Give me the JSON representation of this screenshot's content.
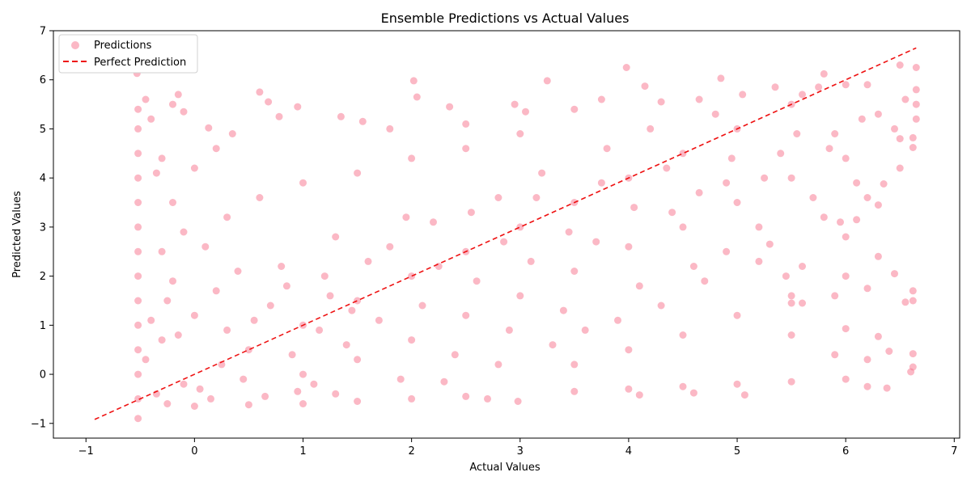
{
  "chart_data": {
    "type": "scatter",
    "title": "Ensemble Predictions vs Actual Values",
    "xlabel": "Actual Values",
    "ylabel": "Predicted Values",
    "xlim": [
      -1.3,
      7.05
    ],
    "ylim": [
      -1.3,
      7.0
    ],
    "xticks": [
      -1,
      0,
      1,
      2,
      3,
      4,
      5,
      6,
      7
    ],
    "yticks": [
      -1,
      0,
      1,
      2,
      3,
      4,
      5,
      6,
      7
    ],
    "tick_labels_x": [
      "−1",
      "0",
      "1",
      "2",
      "3",
      "4",
      "5",
      "6",
      "7"
    ],
    "tick_labels_y": [
      "−1",
      "0",
      "1",
      "2",
      "3",
      "4",
      "5",
      "6",
      "7"
    ],
    "grid": false,
    "legend_position": "top-left",
    "series": [
      {
        "name": "Predictions",
        "kind": "scatter",
        "color": "#f7728b",
        "alpha": 0.5,
        "points": [
          [
            -0.52,
            -0.9
          ],
          [
            -0.52,
            -0.5
          ],
          [
            -0.52,
            0.0
          ],
          [
            -0.52,
            0.5
          ],
          [
            -0.52,
            1.0
          ],
          [
            -0.52,
            1.5
          ],
          [
            -0.52,
            2.0
          ],
          [
            -0.52,
            2.5
          ],
          [
            -0.52,
            3.0
          ],
          [
            -0.52,
            3.5
          ],
          [
            -0.52,
            4.0
          ],
          [
            -0.52,
            4.5
          ],
          [
            -0.52,
            5.0
          ],
          [
            -0.52,
            5.4
          ],
          [
            -0.53,
            6.13
          ],
          [
            -0.45,
            5.6
          ],
          [
            -0.4,
            5.2
          ],
          [
            -0.3,
            4.4
          ],
          [
            -0.2,
            5.5
          ],
          [
            -0.15,
            5.7
          ],
          [
            -0.1,
            5.35
          ],
          [
            0.0,
            4.2
          ],
          [
            0.13,
            5.02
          ],
          [
            0.2,
            4.6
          ],
          [
            0.35,
            4.9
          ],
          [
            0.6,
            5.75
          ],
          [
            0.68,
            5.55
          ],
          [
            0.78,
            5.25
          ],
          [
            0.95,
            5.45
          ],
          [
            0.0,
            -0.65
          ],
          [
            0.5,
            -0.62
          ],
          [
            1.0,
            -0.6
          ],
          [
            1.5,
            -0.55
          ],
          [
            2.0,
            -0.5
          ],
          [
            2.5,
            -0.45
          ],
          [
            2.7,
            -0.5
          ],
          [
            2.98,
            -0.55
          ],
          [
            3.5,
            -0.35
          ],
          [
            4.0,
            -0.3
          ],
          [
            4.1,
            -0.42
          ],
          [
            4.5,
            -0.25
          ],
          [
            4.6,
            -0.38
          ],
          [
            5.0,
            -0.2
          ],
          [
            5.07,
            -0.42
          ],
          [
            5.5,
            -0.15
          ],
          [
            6.0,
            -0.1
          ],
          [
            6.2,
            -0.25
          ],
          [
            6.38,
            -0.28
          ],
          [
            6.6,
            0.05
          ],
          [
            2.02,
            5.98
          ],
          [
            2.05,
            5.65
          ],
          [
            3.25,
            5.98
          ],
          [
            3.98,
            6.25
          ],
          [
            4.15,
            5.87
          ],
          [
            4.85,
            6.03
          ],
          [
            5.6,
            5.7
          ],
          [
            5.8,
            6.12
          ],
          [
            6.2,
            5.9
          ],
          [
            6.5,
            6.3
          ],
          [
            6.65,
            6.25
          ],
          [
            6.65,
            5.8
          ],
          [
            6.65,
            5.5
          ],
          [
            6.65,
            5.2
          ],
          [
            1.35,
            5.25
          ],
          [
            1.55,
            5.15
          ],
          [
            1.8,
            5.0
          ],
          [
            2.35,
            5.45
          ],
          [
            2.5,
            5.1
          ],
          [
            2.95,
            5.5
          ],
          [
            3.05,
            5.35
          ],
          [
            3.5,
            5.4
          ],
          [
            3.75,
            5.6
          ],
          [
            4.3,
            5.55
          ],
          [
            4.65,
            5.6
          ],
          [
            5.05,
            5.7
          ],
          [
            5.35,
            5.85
          ],
          [
            5.75,
            5.85
          ],
          [
            1.5,
            1.5
          ],
          [
            2.0,
            2.0
          ],
          [
            2.5,
            2.5
          ],
          [
            3.0,
            3.0
          ],
          [
            3.5,
            3.5
          ],
          [
            4.0,
            4.0
          ],
          [
            4.5,
            4.5
          ],
          [
            5.0,
            5.0
          ],
          [
            5.5,
            5.5
          ],
          [
            6.0,
            5.9
          ],
          [
            1.0,
            1.0
          ],
          [
            0.5,
            0.5
          ],
          [
            1.2,
            2.0
          ],
          [
            1.8,
            2.6
          ],
          [
            2.2,
            3.1
          ],
          [
            2.8,
            3.6
          ],
          [
            3.2,
            4.1
          ],
          [
            3.8,
            4.6
          ],
          [
            4.2,
            5.0
          ],
          [
            4.8,
            5.3
          ],
          [
            1.0,
            0.0
          ],
          [
            1.5,
            0.3
          ],
          [
            2.0,
            0.7
          ],
          [
            2.5,
            1.2
          ],
          [
            3.0,
            1.6
          ],
          [
            3.5,
            2.1
          ],
          [
            4.0,
            2.6
          ],
          [
            4.5,
            3.0
          ],
          [
            5.0,
            3.5
          ],
          [
            5.5,
            4.0
          ],
          [
            6.0,
            4.4
          ],
          [
            6.5,
            4.8
          ],
          [
            3.5,
            0.2
          ],
          [
            4.0,
            0.5
          ],
          [
            4.5,
            0.8
          ],
          [
            5.0,
            1.2
          ],
          [
            5.5,
            1.6
          ],
          [
            6.0,
            2.0
          ],
          [
            6.3,
            2.4
          ],
          [
            6.45,
            2.05
          ],
          [
            6.62,
            1.7
          ],
          [
            6.62,
            1.5
          ],
          [
            6.55,
            1.47
          ],
          [
            6.2,
            1.75
          ],
          [
            5.9,
            1.6
          ],
          [
            5.6,
            1.45
          ],
          [
            5.5,
            0.8
          ],
          [
            5.9,
            0.4
          ],
          [
            6.2,
            0.3
          ],
          [
            6.4,
            0.47
          ],
          [
            6.62,
            0.42
          ],
          [
            6.62,
            0.15
          ],
          [
            6.3,
            0.77
          ],
          [
            6.0,
            0.93
          ],
          [
            6.62,
            4.62
          ],
          [
            6.62,
            4.82
          ],
          [
            6.35,
            3.88
          ],
          [
            6.3,
            3.45
          ],
          [
            6.2,
            3.6
          ],
          [
            6.1,
            3.15
          ],
          [
            6.0,
            2.8
          ],
          [
            5.95,
            3.1
          ],
          [
            5.8,
            3.2
          ],
          [
            5.6,
            2.2
          ],
          [
            5.45,
            2.0
          ],
          [
            5.5,
            1.45
          ],
          [
            0.3,
            3.2
          ],
          [
            0.6,
            3.6
          ],
          [
            1.0,
            3.9
          ],
          [
            1.5,
            4.1
          ],
          [
            2.0,
            4.4
          ],
          [
            2.5,
            4.6
          ],
          [
            3.0,
            4.9
          ],
          [
            0.8,
            2.2
          ],
          [
            1.3,
            2.8
          ],
          [
            0.2,
            1.7
          ],
          [
            -0.3,
            2.5
          ],
          [
            -0.2,
            3.5
          ],
          [
            -0.1,
            2.9
          ],
          [
            0.1,
            2.6
          ],
          [
            -0.35,
            4.1
          ],
          [
            -0.25,
            1.5
          ],
          [
            -0.15,
            0.8
          ],
          [
            0.05,
            -0.3
          ],
          [
            0.25,
            0.2
          ],
          [
            0.45,
            -0.1
          ],
          [
            2.3,
            -0.15
          ],
          [
            2.8,
            0.2
          ],
          [
            3.3,
            0.6
          ],
          [
            3.6,
            0.9
          ],
          [
            3.9,
            1.1
          ],
          [
            4.3,
            1.4
          ],
          [
            4.7,
            1.9
          ],
          [
            5.2,
            2.3
          ],
          [
            5.3,
            2.65
          ],
          [
            4.9,
            2.5
          ],
          [
            1.1,
            -0.2
          ],
          [
            1.4,
            0.6
          ],
          [
            1.7,
            1.1
          ],
          [
            1.9,
            -0.1
          ],
          [
            2.1,
            1.4
          ],
          [
            2.4,
            0.4
          ],
          [
            2.6,
            1.9
          ],
          [
            2.9,
            0.9
          ],
          [
            3.1,
            2.3
          ],
          [
            3.4,
            1.3
          ],
          [
            3.7,
            2.7
          ],
          [
            4.1,
            1.8
          ],
          [
            4.4,
            3.3
          ],
          [
            4.6,
            2.2
          ],
          [
            4.9,
            3.9
          ],
          [
            5.2,
            3.0
          ],
          [
            5.4,
            4.5
          ],
          [
            5.7,
            3.6
          ],
          [
            5.9,
            4.9
          ],
          [
            6.1,
            3.9
          ],
          [
            6.3,
            5.3
          ],
          [
            6.5,
            4.2
          ],
          [
            6.55,
            5.6
          ],
          [
            0.7,
            1.4
          ],
          [
            0.9,
            0.4
          ],
          [
            1.25,
            1.6
          ],
          [
            1.6,
            2.3
          ],
          [
            1.95,
            3.2
          ],
          [
            2.25,
            2.2
          ],
          [
            2.55,
            3.3
          ],
          [
            2.85,
            2.7
          ],
          [
            3.15,
            3.6
          ],
          [
            3.45,
            2.9
          ],
          [
            3.75,
            3.9
          ],
          [
            4.05,
            3.4
          ],
          [
            4.35,
            4.2
          ],
          [
            4.65,
            3.7
          ],
          [
            4.95,
            4.4
          ],
          [
            5.25,
            4.0
          ],
          [
            5.55,
            4.9
          ],
          [
            5.85,
            4.6
          ],
          [
            6.15,
            5.2
          ],
          [
            6.45,
            5.0
          ],
          [
            -0.45,
            0.3
          ],
          [
            -0.4,
            1.1
          ],
          [
            -0.35,
            -0.4
          ],
          [
            -0.3,
            0.7
          ],
          [
            -0.25,
            -0.6
          ],
          [
            -0.2,
            1.9
          ],
          [
            -0.1,
            -0.2
          ],
          [
            0.0,
            1.2
          ],
          [
            0.15,
            -0.5
          ],
          [
            0.3,
            0.9
          ],
          [
            0.4,
            2.1
          ],
          [
            0.55,
            1.1
          ],
          [
            0.65,
            -0.45
          ],
          [
            0.85,
            1.8
          ],
          [
            0.95,
            -0.35
          ],
          [
            1.15,
            0.9
          ],
          [
            1.3,
            -0.4
          ],
          [
            1.45,
            1.3
          ]
        ]
      },
      {
        "name": "Perfect Prediction",
        "kind": "line",
        "color": "#ee1111",
        "dash": "dashed",
        "x": [
          -0.92,
          6.65
        ],
        "y": [
          -0.92,
          6.65
        ]
      }
    ]
  }
}
